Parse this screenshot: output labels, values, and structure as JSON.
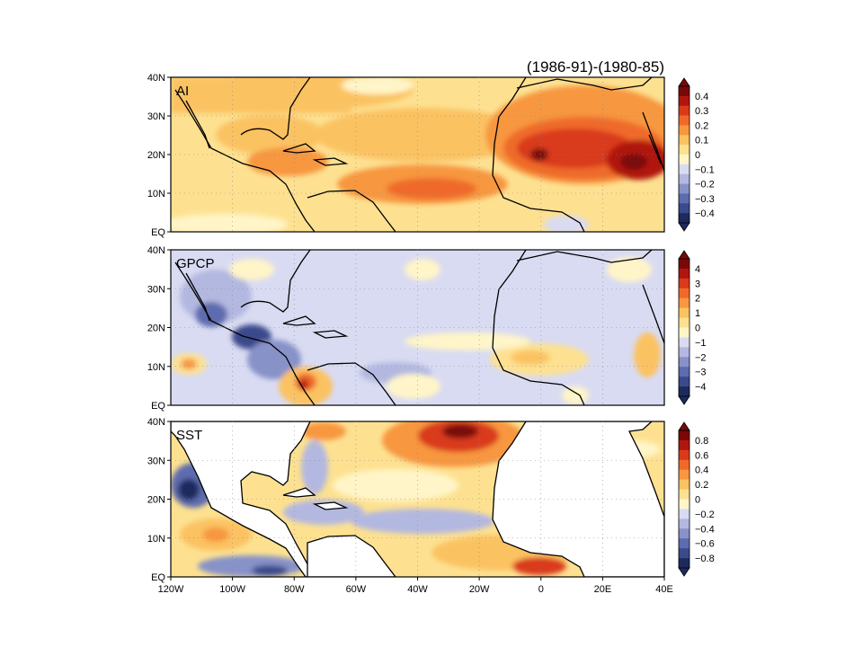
{
  "title": "(1986-91)-(1980-85)",
  "lon_ticks": [
    "120W",
    "100W",
    "80W",
    "60W",
    "40W",
    "20W",
    "0",
    "20E",
    "40E"
  ],
  "lat_ticks": [
    "EQ",
    "10N",
    "20N",
    "30N",
    "40N"
  ],
  "colors": {
    "neg": [
      "#1c2a5e",
      "#3a4a8c",
      "#5d6cae",
      "#8792c8",
      "#b3b8e0",
      "#d9dbf2"
    ],
    "pos": [
      "#fff5c8",
      "#fde191",
      "#fbc262",
      "#f7973f",
      "#ef6a2a",
      "#d93a1a",
      "#b0160f",
      "#7a0808"
    ],
    "coast": "#000000"
  },
  "panels": [
    {
      "id": "ai",
      "label": "AI",
      "colorbar_ticks": [
        "0.4",
        "0.3",
        "0.2",
        "0.1",
        "0",
        "−0.1",
        "−0.2",
        "−0.3",
        "−0.4"
      ]
    },
    {
      "id": "gpcp",
      "label": "GPCP",
      "colorbar_ticks": [
        "4",
        "3",
        "2",
        "1",
        "0",
        "−1",
        "−2",
        "−3",
        "−4"
      ]
    },
    {
      "id": "sst",
      "label": "SST",
      "colorbar_ticks": [
        "0.8",
        "0.6",
        "0.4",
        "0.2",
        "0",
        "−0.2",
        "−0.4",
        "−0.6",
        "−0.8"
      ]
    }
  ]
}
